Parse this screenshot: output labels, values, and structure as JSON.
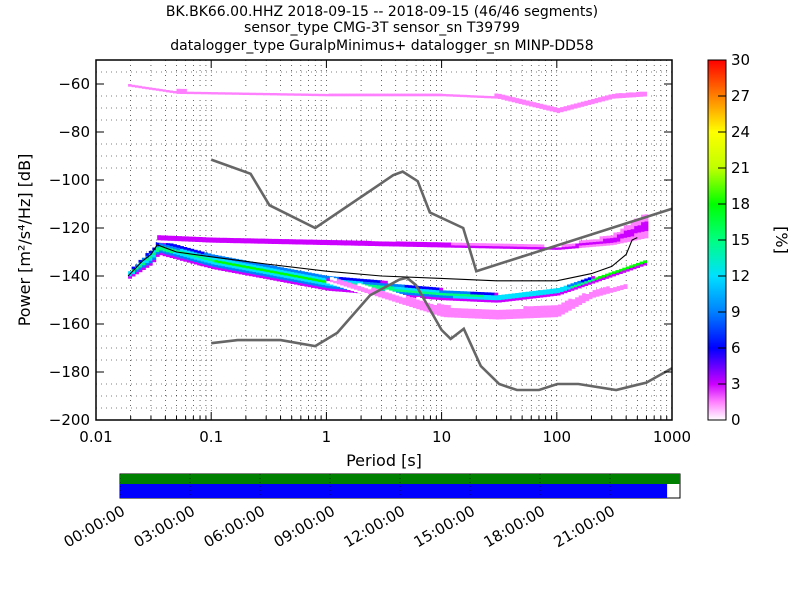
{
  "chart_data": {
    "type": "heatmap",
    "title_lines": [
      "BK.BK66.00.HHZ   2018-09-15 -- 2018-09-15  (46/46 segments)",
      "sensor_type CMG-3T sensor_sn T39799",
      "datalogger_type GuralpMinimus+ datalogger_sn MINP-DD58"
    ],
    "xlabel": "Period [s]",
    "ylabel": "Power [m²/s⁴/Hz] [dB]",
    "x_scale": "log",
    "xlim": [
      0.01,
      1000
    ],
    "ylim": [
      -200,
      -50
    ],
    "x_ticks": [
      0.01,
      0.1,
      1,
      10,
      100,
      1000
    ],
    "x_tick_labels": [
      "0.01",
      "0.1",
      "1",
      "10",
      "100",
      "1000"
    ],
    "y_ticks": [
      -200,
      -180,
      -160,
      -140,
      -120,
      -100,
      -80,
      -60
    ],
    "y_tick_labels": [
      "−200",
      "−180",
      "−160",
      "−140",
      "−120",
      "−100",
      "−80",
      "−60"
    ],
    "grid": true,
    "colorbar": {
      "label": "[%]",
      "range": [
        0,
        30
      ],
      "ticks": [
        0,
        3,
        6,
        9,
        12,
        15,
        18,
        21,
        24,
        27,
        30
      ],
      "tick_labels": [
        "0",
        "3",
        "6",
        "9",
        "12",
        "15",
        "18",
        "21",
        "24",
        "27",
        "30"
      ]
    },
    "model_curves": [
      {
        "points": [
          [
            0.1,
            -91.5
          ],
          [
            0.22,
            -97.4
          ],
          [
            0.32,
            -110.5
          ],
          [
            0.8,
            -120
          ],
          [
            3.8,
            -98
          ],
          [
            4.6,
            -96.5
          ],
          [
            6.2,
            -100.5
          ],
          [
            7.9,
            -113.5
          ],
          [
            15.4,
            -120
          ],
          [
            20,
            -138
          ],
          [
            1000,
            -112
          ]
        ]
      },
      {
        "points": [
          [
            0.1,
            -168
          ],
          [
            0.17,
            -166.7
          ],
          [
            0.4,
            -166.7
          ],
          [
            0.8,
            -169.2
          ],
          [
            1.24,
            -163.7
          ],
          [
            2.4,
            -148
          ],
          [
            4.3,
            -141.5
          ],
          [
            5,
            -140.7
          ],
          [
            6,
            -143.8
          ],
          [
            10,
            -162.5
          ],
          [
            12,
            -166.2
          ],
          [
            15.6,
            -162
          ],
          [
            21.9,
            -177.5
          ],
          [
            31.6,
            -185
          ],
          [
            45,
            -187.5
          ],
          [
            70,
            -187.5
          ],
          [
            101,
            -185
          ],
          [
            154,
            -185
          ],
          [
            328,
            -187.5
          ],
          [
            600,
            -184.4
          ],
          [
            1000,
            -178.4
          ]
        ]
      }
    ],
    "median_curve": [
      [
        0.019,
        -140
      ],
      [
        0.025,
        -134
      ],
      [
        0.03,
        -131
      ],
      [
        0.034,
        -127
      ],
      [
        0.05,
        -130
      ],
      [
        0.1,
        -132
      ],
      [
        0.3,
        -135
      ],
      [
        1,
        -138
      ],
      [
        3,
        -140
      ],
      [
        10,
        -141
      ],
      [
        30,
        -142
      ],
      [
        100,
        -142
      ],
      [
        200,
        -139
      ],
      [
        300,
        -136
      ],
      [
        400,
        -131
      ],
      [
        450,
        -125
      ],
      [
        500,
        -124
      ]
    ],
    "density_bands": [
      {
        "name": "microseism-peak",
        "lo": [
          [
            0.019,
            -141
          ],
          [
            0.03,
            -135
          ],
          [
            0.034,
            -131
          ],
          [
            0.1,
            -137
          ],
          [
            1,
            -146
          ],
          [
            10,
            -150
          ],
          [
            30,
            -151
          ],
          [
            100,
            -148
          ],
          [
            200,
            -143
          ],
          [
            400,
            -138
          ],
          [
            600,
            -135
          ]
        ],
        "hi": [
          [
            0.019,
            -138
          ],
          [
            0.03,
            -129
          ],
          [
            0.034,
            -126
          ],
          [
            0.1,
            -131
          ],
          [
            1,
            -140
          ],
          [
            10,
            -146
          ],
          [
            30,
            -148
          ],
          [
            100,
            -145
          ],
          [
            200,
            -141
          ],
          [
            400,
            -136
          ],
          [
            600,
            -133
          ]
        ],
        "percent": 18
      },
      {
        "name": "upper-band",
        "lo": [
          [
            0.034,
            -126
          ],
          [
            0.1,
            -127
          ],
          [
            1,
            -128
          ],
          [
            10,
            -129
          ],
          [
            100,
            -130
          ],
          [
            300,
            -128
          ],
          [
            600,
            -125
          ]
        ],
        "hi": [
          [
            0.034,
            -123
          ],
          [
            0.1,
            -124
          ],
          [
            1,
            -125
          ],
          [
            10,
            -126
          ],
          [
            100,
            -128
          ],
          [
            300,
            -123
          ],
          [
            600,
            -113
          ]
        ],
        "percent": 4
      },
      {
        "name": "lower-band",
        "lo": [
          [
            1,
            -143
          ],
          [
            10,
            -158
          ],
          [
            30,
            -159
          ],
          [
            100,
            -158
          ],
          [
            200,
            -150
          ],
          [
            400,
            -146
          ]
        ],
        "hi": [
          [
            1,
            -141
          ],
          [
            10,
            -152
          ],
          [
            30,
            -154
          ],
          [
            100,
            -151
          ],
          [
            200,
            -146
          ],
          [
            400,
            -143
          ]
        ],
        "percent": 3
      },
      {
        "name": "high-noise-top",
        "lo": [
          [
            0.019,
            -62
          ],
          [
            0.05,
            -65
          ],
          [
            1,
            -66
          ],
          [
            10,
            -66
          ],
          [
            30,
            -67
          ],
          [
            100,
            -73
          ],
          [
            300,
            -67
          ],
          [
            600,
            -66
          ]
        ],
        "hi": [
          [
            0.019,
            -60
          ],
          [
            0.05,
            -62
          ],
          [
            1,
            -64
          ],
          [
            10,
            -64
          ],
          [
            30,
            -64
          ],
          [
            100,
            -70
          ],
          [
            300,
            -64
          ],
          [
            600,
            -63
          ]
        ],
        "percent": 2
      }
    ]
  },
  "time_bar": {
    "tick_labels": [
      "00:00:00",
      "03:00:00",
      "06:00:00",
      "09:00:00",
      "12:00:00",
      "15:00:00",
      "18:00:00",
      "21:00:00"
    ],
    "coverage_color": "#0000ff",
    "data_color": "#008000",
    "coverage_fraction": 0.977,
    "data_fraction": 1.0
  }
}
